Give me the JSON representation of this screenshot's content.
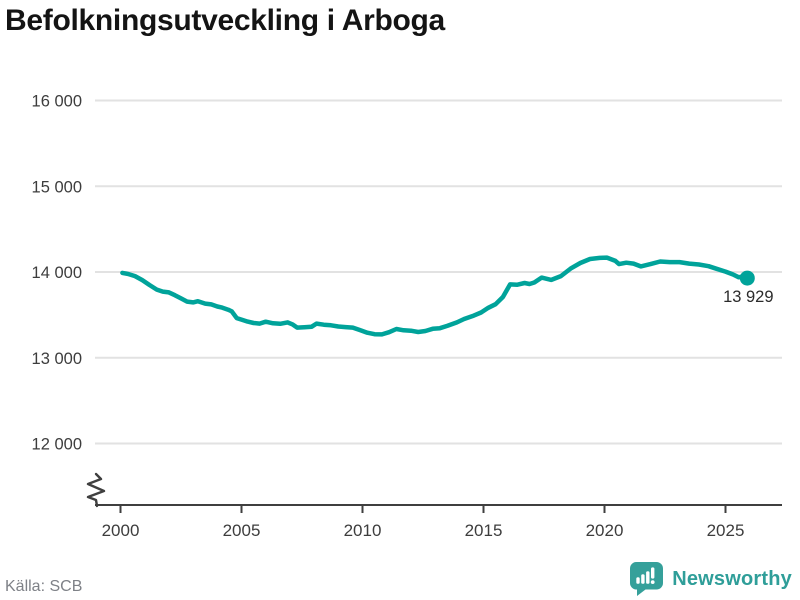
{
  "title": "Befolkningsutveckling i Arboga",
  "source": "Källa: SCB",
  "branding": {
    "name": "Newsworthy",
    "icon": "newsworthy-chart-bubble-icon"
  },
  "colors": {
    "line": "#00a39a",
    "grid": "#e2e2e2",
    "axis": "#3f3f3f",
    "tick_text": "#3d3d3d",
    "end_label_text": "#2b2b2b",
    "title_text": "#141414",
    "source_text": "#7e8187",
    "brand": "#2f9e99",
    "brand_icon": "#35a09a"
  },
  "chart_data": {
    "type": "line",
    "title": "Befolkningsutveckling i Arboga",
    "xlabel": "",
    "ylabel": "",
    "x_unit": "year",
    "xlim": [
      1998.9,
      2027.3
    ],
    "ylim": [
      12000,
      16000
    ],
    "grid": "horizontal",
    "legend": "none",
    "y_axis_break_at_bottom": true,
    "yticks": [
      {
        "value": 16000,
        "label": "16 000"
      },
      {
        "value": 15000,
        "label": "15 000"
      },
      {
        "value": 14000,
        "label": "14 000"
      },
      {
        "value": 13000,
        "label": "13 000"
      },
      {
        "value": 12000,
        "label": "12 000"
      }
    ],
    "xticks": [
      {
        "value": 2000,
        "label": "2000"
      },
      {
        "value": 2005,
        "label": "2005"
      },
      {
        "value": 2010,
        "label": "2010"
      },
      {
        "value": 2015,
        "label": "2015"
      },
      {
        "value": 2020,
        "label": "2020"
      },
      {
        "value": 2025,
        "label": "2025"
      }
    ],
    "series": [
      {
        "points": [
          [
            2000.08,
            13990
          ],
          [
            2000.3,
            13978
          ],
          [
            2000.6,
            13952
          ],
          [
            2000.9,
            13905
          ],
          [
            2001.2,
            13848
          ],
          [
            2001.5,
            13795
          ],
          [
            2001.75,
            13772
          ],
          [
            2002.0,
            13762
          ],
          [
            2002.25,
            13730
          ],
          [
            2002.5,
            13692
          ],
          [
            2002.75,
            13655
          ],
          [
            2003.0,
            13645
          ],
          [
            2003.2,
            13660
          ],
          [
            2003.5,
            13632
          ],
          [
            2003.75,
            13622
          ],
          [
            2004.0,
            13598
          ],
          [
            2004.2,
            13585
          ],
          [
            2004.45,
            13560
          ],
          [
            2004.6,
            13540
          ],
          [
            2004.8,
            13462
          ],
          [
            2005.0,
            13445
          ],
          [
            2005.25,
            13422
          ],
          [
            2005.5,
            13405
          ],
          [
            2005.75,
            13398
          ],
          [
            2006.0,
            13420
          ],
          [
            2006.3,
            13402
          ],
          [
            2006.6,
            13396
          ],
          [
            2006.9,
            13412
          ],
          [
            2007.1,
            13390
          ],
          [
            2007.3,
            13352
          ],
          [
            2007.6,
            13356
          ],
          [
            2007.9,
            13362
          ],
          [
            2008.1,
            13398
          ],
          [
            2008.4,
            13386
          ],
          [
            2008.7,
            13378
          ],
          [
            2009.0,
            13364
          ],
          [
            2009.3,
            13358
          ],
          [
            2009.6,
            13352
          ],
          [
            2009.9,
            13322
          ],
          [
            2010.2,
            13292
          ],
          [
            2010.5,
            13275
          ],
          [
            2010.8,
            13272
          ],
          [
            2011.1,
            13298
          ],
          [
            2011.4,
            13335
          ],
          [
            2011.7,
            13320
          ],
          [
            2012.0,
            13315
          ],
          [
            2012.3,
            13300
          ],
          [
            2012.6,
            13312
          ],
          [
            2012.9,
            13338
          ],
          [
            2013.2,
            13345
          ],
          [
            2013.5,
            13372
          ],
          [
            2013.9,
            13412
          ],
          [
            2014.2,
            13452
          ],
          [
            2014.6,
            13492
          ],
          [
            2014.9,
            13528
          ],
          [
            2015.2,
            13582
          ],
          [
            2015.5,
            13625
          ],
          [
            2015.8,
            13708
          ],
          [
            2016.1,
            13855
          ],
          [
            2016.4,
            13852
          ],
          [
            2016.7,
            13872
          ],
          [
            2016.9,
            13860
          ],
          [
            2017.1,
            13878
          ],
          [
            2017.4,
            13935
          ],
          [
            2017.8,
            13908
          ],
          [
            2018.2,
            13952
          ],
          [
            2018.6,
            14040
          ],
          [
            2019.0,
            14105
          ],
          [
            2019.4,
            14152
          ],
          [
            2019.8,
            14165
          ],
          [
            2020.1,
            14168
          ],
          [
            2020.45,
            14130
          ],
          [
            2020.6,
            14092
          ],
          [
            2020.9,
            14108
          ],
          [
            2021.2,
            14098
          ],
          [
            2021.5,
            14065
          ],
          [
            2021.9,
            14092
          ],
          [
            2022.3,
            14122
          ],
          [
            2022.7,
            14115
          ],
          [
            2023.1,
            14115
          ],
          [
            2023.5,
            14098
          ],
          [
            2023.9,
            14088
          ],
          [
            2024.3,
            14068
          ],
          [
            2024.7,
            14032
          ],
          [
            2025.0,
            14005
          ],
          [
            2025.3,
            13972
          ],
          [
            2025.55,
            13938
          ],
          [
            2025.7,
            13948
          ],
          [
            2025.9,
            13929
          ]
        ]
      }
    ],
    "end_point": {
      "x": 2025.9,
      "y": 13929,
      "label": "13 929"
    }
  }
}
